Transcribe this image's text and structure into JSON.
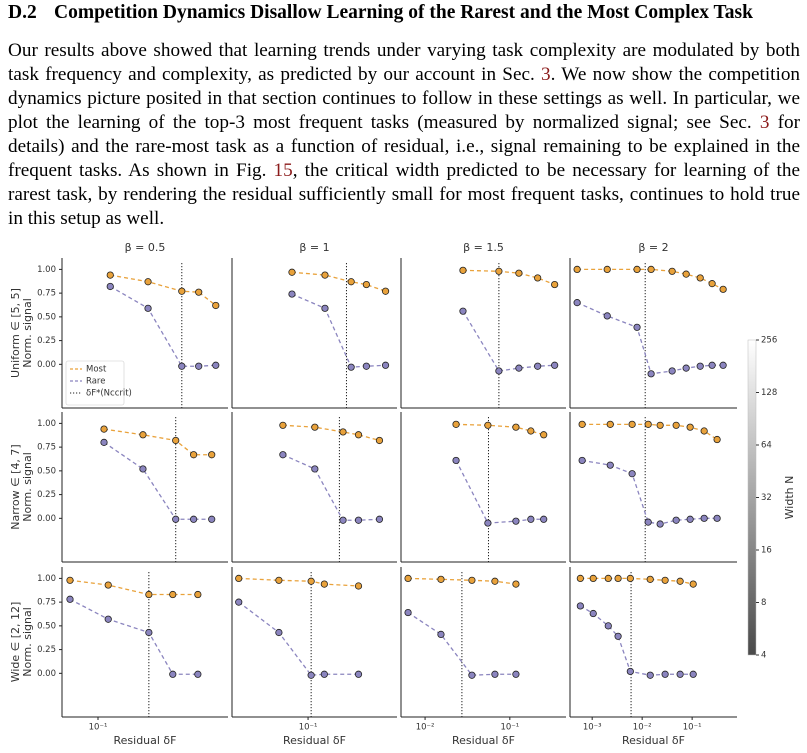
{
  "section": {
    "number": "D.2",
    "title": "Competition Dynamics Disallow Learning of the Rarest and the Most Complex Task"
  },
  "paragraph": [
    "Our results above showed that learning trends under varying task complexity are modulated by both task frequency and complexity, as predicted by our account in Sec. ",
    "3",
    ". We now show the competition dynamics picture posited in that section continues to follow in these settings as well. In particular, we plot the learning of the top-3 most frequent tasks (measured by normalized signal; see Sec. ",
    "3",
    " for details) and the rare-most task as a function of residual, i.e., signal remaining to be explained in the frequent tasks. As shown in Fig. ",
    "15",
    ", the critical width predicted to be necessary for learning of the rarest task, by rendering the residual sufficiently small for most frequent tasks, continues to hold true in this setup as well."
  ],
  "chart_data": [
    {
      "type": "line",
      "title": "β = 0.5",
      "ylabel": [
        "Uniform ∈ [5, 5]",
        "Norm. signal"
      ],
      "xscale": "log",
      "xlim": [
        0.063,
        0.53
      ],
      "ylim": [
        -0.46,
        1.12
      ],
      "yticks": [
        {
          "value": 0,
          "label": "0.00"
        },
        0.25,
        {
          "value": 0.5,
          "label": "0.50"
        },
        0.75,
        {
          "value": 1,
          "label": "1.00"
        }
      ],
      "x": [
        0.117,
        0.19,
        0.293,
        0.364,
        0.453
      ],
      "series": [
        {
          "name": "Most",
          "color": "#e9a23b",
          "values": [
            0.94,
            0.87,
            0.77,
            0.76,
            0.62
          ]
        },
        {
          "name": "Rare",
          "color": "#8b85bf",
          "values": [
            0.82,
            0.59,
            -0.02,
            -0.02,
            -0.01
          ]
        }
      ],
      "vline": {
        "value": 0.293,
        "name": "δF*(Nccrit)"
      },
      "legend": "lower left"
    },
    {
      "type": "line",
      "title": "β = 1",
      "xscale": "log",
      "xlim": [
        0.038,
        0.31
      ],
      "ylim": [
        -0.46,
        1.12
      ],
      "x": [
        0.0815,
        0.124,
        0.173,
        0.21,
        0.268
      ],
      "series": [
        {
          "name": "Most",
          "color": "#e9a23b",
          "values": [
            0.97,
            0.94,
            0.87,
            0.84,
            0.77
          ]
        },
        {
          "name": "Rare",
          "color": "#8b85bf",
          "values": [
            0.74,
            0.59,
            -0.03,
            -0.02,
            -0.01
          ]
        }
      ],
      "vline": {
        "value": 0.163
      }
    },
    {
      "type": "line",
      "title": "β = 1.5",
      "xscale": "log",
      "xlim": [
        0.0052,
        0.46
      ],
      "ylim": [
        -0.46,
        1.12
      ],
      "x": [
        0.028,
        0.0743,
        0.128,
        0.213,
        0.338
      ],
      "series": [
        {
          "name": "Most",
          "color": "#e9a23b",
          "values": [
            0.99,
            0.98,
            0.96,
            0.91,
            0.84
          ]
        },
        {
          "name": "Rare",
          "color": "#8b85bf",
          "values": [
            0.56,
            -0.07,
            -0.04,
            -0.02,
            -0.01
          ]
        }
      ],
      "vline": {
        "value": 0.0743
      }
    },
    {
      "type": "line",
      "title": "β = 2",
      "xscale": "log",
      "xlim": [
        0.00036,
        0.79
      ],
      "ylim": [
        -0.46,
        1.12
      ],
      "x": [
        0.0005,
        0.002,
        0.0079,
        0.0151,
        0.0398,
        0.0759,
        0.145,
        0.251,
        0.417
      ],
      "series": [
        {
          "name": "Most",
          "color": "#e9a23b",
          "values": [
            1.0,
            1.0,
            1.0,
            1.0,
            0.98,
            0.95,
            0.91,
            0.85,
            0.79
          ]
        },
        {
          "name": "Rare",
          "color": "#8b85bf",
          "values": [
            0.65,
            0.51,
            0.39,
            -0.1,
            -0.07,
            -0.04,
            -0.02,
            -0.01,
            -0.01
          ]
        }
      ],
      "vline": {
        "value": 0.0115
      }
    },
    {
      "type": "line",
      "ylabel": [
        "Narrow ∈ [4, 7]",
        "Norm. signal"
      ],
      "xscale": "log",
      "xlim": [
        0.063,
        0.53
      ],
      "ylim": [
        -0.46,
        1.12
      ],
      "yticks": [
        {
          "value": 0,
          "label": "0.00"
        },
        0.25,
        {
          "value": 0.5,
          "label": "0.50"
        },
        0.75,
        {
          "value": 1,
          "label": "1.00"
        }
      ],
      "x": [
        0.108,
        0.178,
        0.271,
        0.341,
        0.43
      ],
      "series": [
        {
          "name": "Most",
          "color": "#e9a23b",
          "values": [
            0.94,
            0.88,
            0.82,
            0.67,
            0.67
          ]
        },
        {
          "name": "Rare",
          "color": "#8b85bf",
          "values": [
            0.8,
            0.52,
            -0.01,
            -0.01,
            -0.01
          ]
        }
      ],
      "vline": {
        "value": 0.271
      }
    },
    {
      "type": "line",
      "xscale": "log",
      "xlim": [
        0.038,
        0.31
      ],
      "ylim": [
        -0.46,
        1.12
      ],
      "x": [
        0.0726,
        0.109,
        0.156,
        0.19,
        0.248
      ],
      "series": [
        {
          "name": "Most",
          "color": "#e9a23b",
          "values": [
            0.98,
            0.96,
            0.91,
            0.88,
            0.82
          ]
        },
        {
          "name": "Rare",
          "color": "#8b85bf",
          "values": [
            0.67,
            0.52,
            -0.02,
            -0.02,
            -0.01
          ]
        }
      ],
      "vline": {
        "value": 0.149
      }
    },
    {
      "type": "line",
      "xscale": "log",
      "xlim": [
        0.0052,
        0.46
      ],
      "ylim": [
        -0.46,
        1.12
      ],
      "x": [
        0.0232,
        0.0551,
        0.118,
        0.177,
        0.251
      ],
      "series": [
        {
          "name": "Most",
          "color": "#e9a23b",
          "values": [
            0.99,
            0.98,
            0.96,
            0.92,
            0.88
          ]
        },
        {
          "name": "Rare",
          "color": "#8b85bf",
          "values": [
            0.61,
            -0.05,
            -0.03,
            -0.01,
            -0.01
          ]
        }
      ],
      "vline": {
        "value": 0.056
      }
    },
    {
      "type": "line",
      "xscale": "log",
      "xlim": [
        0.00036,
        0.79
      ],
      "ylim": [
        -0.46,
        1.12
      ],
      "x": [
        0.00063,
        0.0023,
        0.0063,
        0.0132,
        0.0229,
        0.0479,
        0.0912,
        0.174,
        0.316
      ],
      "series": [
        {
          "name": "Most",
          "color": "#e9a23b",
          "values": [
            0.99,
            0.99,
            0.99,
            0.99,
            0.98,
            0.98,
            0.96,
            0.92,
            0.83
          ]
        },
        {
          "name": "Rare",
          "color": "#8b85bf",
          "values": [
            0.61,
            0.56,
            0.47,
            -0.04,
            -0.06,
            -0.02,
            -0.01,
            0.0,
            0.0
          ]
        }
      ],
      "vline": {
        "value": 0.0115
      }
    },
    {
      "type": "line",
      "ylabel": [
        "Wide ∈ [2, 12]",
        "Norm. signal"
      ],
      "xlabel": "Residual δF",
      "xscale": "log",
      "xlim": [
        0.063,
        0.53
      ],
      "ylim": [
        -0.46,
        1.12
      ],
      "yticks": [
        {
          "value": 0,
          "label": "0.00"
        },
        0.25,
        {
          "value": 0.5,
          "label": "0.50"
        },
        0.75,
        {
          "value": 1,
          "label": "1.00"
        }
      ],
      "xticks": [
        {
          "value": 0.1,
          "label": "10⁻¹"
        }
      ],
      "x": [
        0.0698,
        0.114,
        0.192,
        0.261,
        0.36
      ],
      "series": [
        {
          "name": "Most",
          "color": "#e9a23b",
          "values": [
            0.98,
            0.93,
            0.83,
            0.83,
            0.83
          ]
        },
        {
          "name": "Rare",
          "color": "#8b85bf",
          "values": [
            0.78,
            0.57,
            0.43,
            -0.01,
            -0.01
          ]
        }
      ],
      "vline": {
        "value": 0.192
      }
    },
    {
      "type": "line",
      "xlabel": "Residual δF",
      "xscale": "log",
      "xlim": [
        0.038,
        0.31
      ],
      "ylim": [
        -0.46,
        1.12
      ],
      "xticks": [
        {
          "value": 0.1,
          "label": "10⁻¹"
        }
      ],
      "x": [
        0.0414,
        0.069,
        0.104,
        0.123,
        0.19
      ],
      "series": [
        {
          "name": "Most",
          "color": "#e9a23b",
          "values": [
            1.0,
            0.98,
            0.97,
            0.94,
            0.92
          ]
        },
        {
          "name": "Rare",
          "color": "#8b85bf",
          "values": [
            0.75,
            0.43,
            -0.02,
            -0.01,
            -0.01
          ]
        }
      ],
      "vline": {
        "value": 0.104
      }
    },
    {
      "type": "line",
      "xlabel": "Residual δF",
      "xscale": "log",
      "xlim": [
        0.0052,
        0.46
      ],
      "ylim": [
        -0.46,
        1.12
      ],
      "xticks": [
        {
          "value": 0.01,
          "label": "10⁻²"
        },
        {
          "value": 0.1,
          "label": "10⁻¹"
        }
      ],
      "x": [
        0.0063,
        0.0154,
        0.0357,
        0.0667,
        0.118
      ],
      "series": [
        {
          "name": "Most",
          "color": "#e9a23b",
          "values": [
            1.0,
            0.99,
            0.98,
            0.97,
            0.94
          ]
        },
        {
          "name": "Rare",
          "color": "#8b85bf",
          "values": [
            0.64,
            0.41,
            -0.02,
            -0.01,
            -0.01
          ]
        }
      ],
      "vline": {
        "value": 0.0272
      }
    },
    {
      "type": "line",
      "xlabel": "Residual δF",
      "xscale": "log",
      "xlim": [
        0.00036,
        0.79
      ],
      "ylim": [
        -0.46,
        1.12
      ],
      "xticks": [
        {
          "value": 0.001,
          "label": "10⁻³"
        },
        {
          "value": 0.01,
          "label": "10⁻²"
        },
        {
          "value": 0.1,
          "label": "10⁻¹"
        }
      ],
      "x": [
        0.00058,
        0.00105,
        0.0021,
        0.0033,
        0.0058,
        0.0145,
        0.0288,
        0.0575,
        0.105
      ],
      "series": [
        {
          "name": "Most",
          "color": "#e9a23b",
          "values": [
            1.0,
            1.0,
            1.0,
            1.0,
            1.0,
            0.99,
            0.98,
            0.97,
            0.94
          ]
        },
        {
          "name": "Rare",
          "color": "#8b85bf",
          "values": [
            0.71,
            0.63,
            0.5,
            0.39,
            0.02,
            -0.02,
            -0.01,
            -0.01,
            -0.01
          ]
        }
      ],
      "vline": {
        "value": 0.006
      }
    },
    {
      "type": "colorbar",
      "label": "Width N",
      "scale": "log",
      "lim": [
        4,
        256
      ],
      "ticks": [
        4,
        8,
        16,
        32,
        64,
        128,
        256
      ]
    }
  ]
}
